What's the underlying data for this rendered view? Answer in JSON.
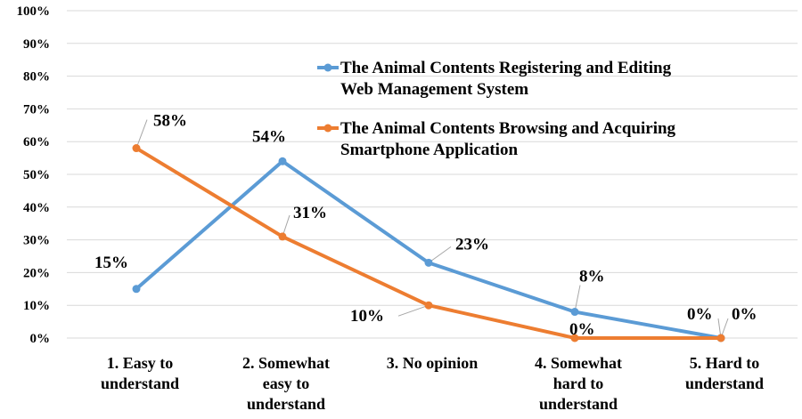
{
  "chart_data": {
    "type": "line",
    "title": "",
    "xlabel": "",
    "ylabel": "",
    "ylim": [
      0,
      100
    ],
    "yticks": [
      "0%",
      "10%",
      "20%",
      "30%",
      "40%",
      "50%",
      "60%",
      "70%",
      "80%",
      "90%",
      "100%"
    ],
    "grid": true,
    "legend_position": "top-right",
    "categories": [
      [
        "1. Easy to",
        "understand"
      ],
      [
        "2. Somewhat",
        "easy to",
        "understand"
      ],
      [
        "3. No opinion"
      ],
      [
        "4. Somewhat",
        "hard to",
        "understand"
      ],
      [
        "5. Hard to",
        "understand"
      ]
    ],
    "series": [
      {
        "name": [
          "The Animal Contents Registering and Editing",
          "Web Management System"
        ],
        "color": "#5b9bd5",
        "values": [
          15,
          54,
          23,
          8,
          0
        ],
        "labels": [
          "15%",
          "54%",
          "23%",
          "8%",
          "0%"
        ]
      },
      {
        "name": [
          "The Animal Contents Browsing and Acquiring",
          "Smartphone Application"
        ],
        "color": "#ed7d31",
        "values": [
          58,
          31,
          10,
          0,
          0
        ],
        "labels": [
          "58%",
          "31%",
          "10%",
          "0%",
          "0%"
        ]
      }
    ]
  }
}
